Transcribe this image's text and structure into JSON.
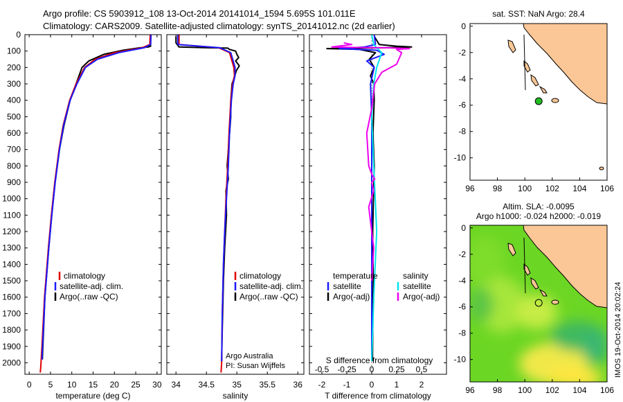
{
  "header": {
    "line1": "Argo profile: CS 5903912_108 13-Oct-2014 20141014_1594 5.695S 101.011E",
    "line2": "Climatology: CARS2009. Satellite-adjusted climatology: synTS_20141012.nc (2d earlier)"
  },
  "side_stamp": "IMOS 19-Oct-2014 20:02:24",
  "colors": {
    "argo": "#000000",
    "climatology": "#e00000",
    "satellite": "#1a1aff",
    "t_sat_diff": "#1a1aff",
    "s_sat_diff": "#00e5ee",
    "s_argo_diff": "#ee00ee",
    "land": "#fbc796",
    "float_marker": "#22bb22"
  },
  "chart_data": [
    {
      "id": "temperature",
      "type": "line",
      "xlabel": "temperature (deg C)",
      "ylabel": "",
      "xlim": [
        -1,
        31
      ],
      "ylim": [
        2070,
        0
      ],
      "xticks": [
        0,
        5,
        10,
        15,
        20,
        25,
        30
      ],
      "yticks": [
        0,
        100,
        200,
        300,
        400,
        500,
        600,
        700,
        800,
        900,
        1000,
        1100,
        1200,
        1300,
        1400,
        1500,
        1600,
        1700,
        1800,
        1900,
        2000
      ],
      "legend": {
        "position": "lower-center",
        "entries": [
          "climatology",
          "satellite-adj. clim.",
          "Argo(..raw -QC)"
        ]
      },
      "series": [
        {
          "name": "climatology",
          "color_key": "climatology",
          "x": [
            28.4,
            28.3,
            26.5,
            20,
            15.5,
            13,
            11,
            9.5,
            8,
            7,
            6,
            5.2,
            4.5,
            3.6,
            3.0,
            2.7,
            2.6
          ],
          "y": [
            0,
            60,
            80,
            110,
            150,
            200,
            300,
            400,
            550,
            700,
            900,
            1100,
            1300,
            1600,
            1900,
            2030,
            2060
          ]
        },
        {
          "name": "satellite-adj. clim.",
          "color_key": "satellite",
          "x": [
            28.6,
            28.5,
            27,
            21,
            16,
            13.2,
            11.2,
            9.6,
            8.1,
            7.1,
            6.1,
            5.3,
            4.6,
            3.7,
            3.0
          ],
          "y": [
            0,
            60,
            80,
            110,
            150,
            200,
            300,
            400,
            550,
            700,
            900,
            1100,
            1300,
            1600,
            1980
          ]
        },
        {
          "name": "Argo(..raw -QC)",
          "color_key": "argo",
          "x": [
            28.5,
            28.5,
            28.0,
            26,
            22,
            17.5,
            14,
            12.4,
            11,
            9.6,
            8.2,
            7.1,
            6.1,
            5.3,
            4.6,
            3.7,
            3.1
          ],
          "y": [
            10,
            70,
            75,
            80,
            95,
            120,
            160,
            200,
            300,
            400,
            550,
            700,
            900,
            1100,
            1300,
            1600,
            1980
          ]
        }
      ]
    },
    {
      "id": "salinity",
      "type": "line",
      "xlabel": "salinity",
      "xlim": [
        33.85,
        36.1
      ],
      "ylim": [
        2070,
        0
      ],
      "xticks": [
        34,
        34.5,
        35,
        35.5,
        36
      ],
      "legend": {
        "position": "lower-right",
        "entries": [
          "climatology",
          "satellite-adj. clim.",
          "Argo(..raw -QC)"
        ]
      },
      "annotation": [
        "Argo Australia",
        "PI: Susan Wijffels"
      ],
      "series": [
        {
          "name": "climatology",
          "color_key": "climatology",
          "x": [
            34.05,
            34.05,
            34.7,
            34.88,
            34.95,
            34.96,
            34.93,
            34.9,
            34.87,
            34.85,
            34.82,
            34.8,
            34.78,
            34.76,
            34.75,
            34.74
          ],
          "y": [
            0,
            60,
            80,
            110,
            200,
            250,
            300,
            400,
            600,
            800,
            1000,
            1200,
            1400,
            1700,
            2000,
            2060
          ]
        },
        {
          "name": "satellite-adj. clim.",
          "color_key": "satellite",
          "x": [
            34.03,
            34.03,
            34.72,
            34.9,
            34.97,
            34.97,
            34.94,
            34.91,
            34.88,
            34.86,
            34.83,
            34.8,
            34.78,
            34.76,
            34.75
          ],
          "y": [
            0,
            60,
            80,
            110,
            200,
            250,
            300,
            400,
            600,
            800,
            1000,
            1200,
            1400,
            1700,
            1990
          ]
        },
        {
          "name": "Argo(..raw -QC)",
          "color_key": "argo",
          "x": [
            34.0,
            34.0,
            34.05,
            34.5,
            34.85,
            34.88,
            34.98,
            35.0,
            35.03,
            34.98,
            35.04,
            34.99,
            34.96,
            34.92,
            34.9,
            34.9,
            34.87,
            34.84,
            34.86,
            34.82,
            34.83,
            34.8,
            34.78,
            34.76,
            34.75
          ],
          "y": [
            10,
            50,
            75,
            80,
            82,
            90,
            100,
            120,
            140,
            160,
            190,
            220,
            260,
            300,
            400,
            500,
            650,
            800,
            880,
            950,
            1100,
            1300,
            1500,
            1800,
            1990
          ]
        }
      ]
    },
    {
      "id": "difference",
      "type": "line",
      "xlabel": "T difference from climatology",
      "x2label": "S difference from climatology",
      "xlim": [
        -2.5,
        3
      ],
      "ylim": [
        2070,
        0
      ],
      "xticks": [
        -2,
        -1,
        0,
        1,
        2
      ],
      "s_ticks": [
        "-0.5",
        "-0.25",
        "0",
        "0.25",
        "0.5"
      ],
      "legend": {
        "position": "lower-center",
        "headings": [
          "temperature",
          "salinity"
        ],
        "entries": [
          "satellite",
          "Argo(-adj)",
          "satellite",
          "Argo(-adj)"
        ]
      },
      "series": [
        {
          "name": "T satellite",
          "color_key": "t_sat_diff",
          "x": [
            0.1,
            0.15,
            -0.3,
            -1.3,
            0.2,
            0.5,
            -0.2,
            0.1,
            -0.05,
            0.0,
            0.0
          ],
          "y": [
            0,
            60,
            75,
            85,
            95,
            120,
            160,
            200,
            300,
            500,
            1990
          ]
        },
        {
          "name": "T Argo(-adj)",
          "color_key": "argo",
          "x": [
            0.1,
            0.3,
            1.0,
            1.6,
            0.5,
            -0.5,
            -1.8,
            -0.5,
            0.15,
            -0.1,
            0.1,
            -0.05,
            0.08,
            0.1,
            0.05,
            0.1,
            0.04,
            0.06,
            0.03
          ],
          "y": [
            10,
            60,
            70,
            75,
            80,
            82,
            85,
            90,
            110,
            150,
            200,
            250,
            300,
            400,
            600,
            800,
            1200,
            1500,
            1990
          ]
        },
        {
          "name": "S satellite",
          "color_key": "s_sat_diff",
          "x": [
            0.0,
            0.02,
            0.05,
            0.1,
            0.05,
            0.02,
            0.0,
            0.02,
            0.05,
            0.02,
            0.0
          ],
          "y": [
            0,
            60,
            80,
            110,
            200,
            300,
            500,
            800,
            1200,
            1600,
            1990
          ]
        },
        {
          "name": "S Argo(-adj)",
          "color_key": "s_argo_diff",
          "x": [
            -0.28,
            -0.2,
            -0.4,
            -0.15,
            0.15,
            0.38,
            0.25,
            0.3,
            0.25,
            0.1,
            0.05,
            0.03,
            0.0,
            -0.05,
            -0.03,
            0.0,
            0.03,
            0.0,
            0.02,
            -0.03,
            0.0,
            0.02,
            0.0
          ],
          "y": [
            50,
            60,
            75,
            78,
            80,
            85,
            90,
            110,
            180,
            230,
            280,
            300,
            450,
            600,
            800,
            850,
            880,
            900,
            950,
            1050,
            1200,
            1300,
            1500
          ]
        }
      ]
    },
    {
      "id": "sst-map",
      "type": "scatter",
      "title": "sat. SST: NaN Argo: 28.4",
      "xlim": [
        96,
        106
      ],
      "ylim": [
        -11.7,
        0.2
      ],
      "xticks": [
        96,
        98,
        100,
        102,
        104,
        106
      ],
      "yticks": [
        0,
        -2,
        -4,
        -6,
        -8,
        -10
      ],
      "float_position": {
        "lon": 101.011,
        "lat": -5.695
      }
    },
    {
      "id": "sla-map",
      "type": "heatmap",
      "title_line1": "Altim. SLA: -0.0095",
      "title_line2": "Argo h1000: -0.024 h2000: -0.019",
      "xlim": [
        96,
        106
      ],
      "ylim": [
        -11.7,
        0.2
      ],
      "xticks": [
        96,
        98,
        100,
        102,
        104,
        106
      ],
      "yticks": [
        0,
        -2,
        -4,
        -6,
        -8,
        -10
      ],
      "float_position": {
        "lon": 101.011,
        "lat": -5.695
      }
    }
  ]
}
